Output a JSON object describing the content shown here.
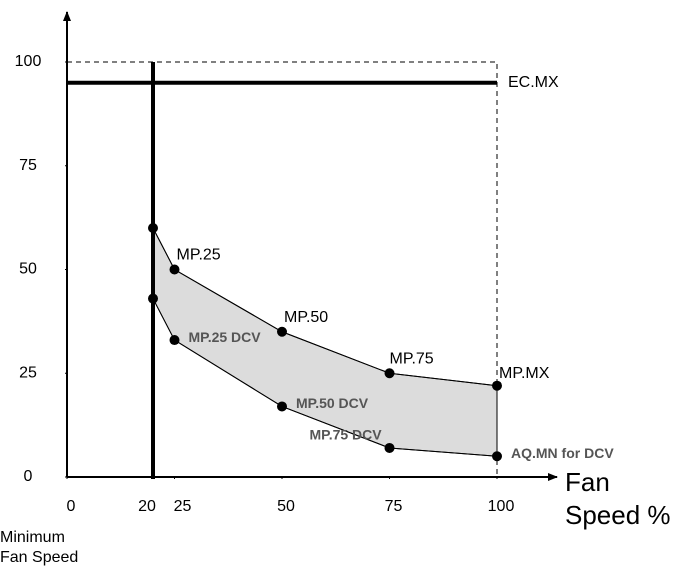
{
  "chart_data": {
    "type": "line",
    "x_label": "Fan Speed %",
    "min_fan_speed_label": "Minimum Fan Speed",
    "xlim": [
      0,
      100
    ],
    "ylim": [
      0,
      100
    ],
    "xticks": [
      0,
      20,
      25,
      50,
      75,
      100
    ],
    "yticks": [
      0,
      25,
      50,
      75,
      100
    ],
    "min_fan_speed": 20,
    "ec_mx": {
      "value": 95,
      "label": "EC.MX"
    },
    "series": [
      {
        "name": "upper",
        "x": [
          20,
          25,
          50,
          75,
          100
        ],
        "values": [
          60,
          50,
          35,
          25,
          22
        ],
        "labels": [
          null,
          "MP.25",
          "MP.50",
          "MP.75",
          "MP.MX"
        ]
      },
      {
        "name": "lower",
        "x": [
          20,
          25,
          50,
          75,
          100
        ],
        "values": [
          43,
          33,
          17,
          7,
          5
        ],
        "labels": [
          null,
          "MP.25 DCV",
          "MP.50 DCV",
          "MP.75 DCV",
          "AQ.MN for DCV"
        ]
      }
    ]
  }
}
